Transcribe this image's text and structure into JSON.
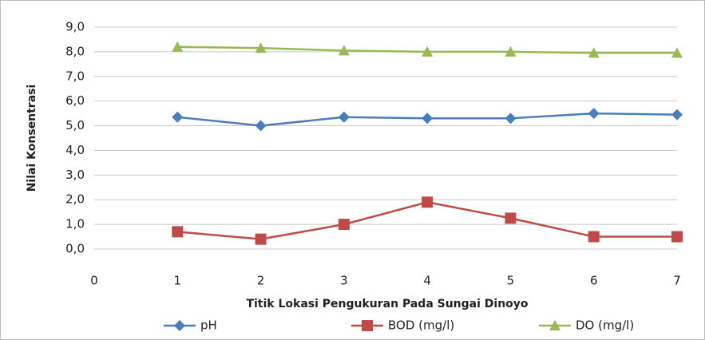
{
  "chart_data": {
    "type": "line",
    "x_label": "Titik Lokasi Pengukuran Pada Sungai Dinoyo",
    "y_label": "Nilai Konsentrasi",
    "x": [
      1,
      2,
      3,
      4,
      5,
      6,
      7
    ],
    "xlim": [
      0,
      7
    ],
    "xticks": [
      0,
      1,
      2,
      3,
      4,
      5,
      6,
      7
    ],
    "ylim": [
      0,
      9
    ],
    "yticks": [
      {
        "value": 0,
        "label": "0,0"
      },
      {
        "value": 1,
        "label": "1,0"
      },
      {
        "value": 2,
        "label": "2,0"
      },
      {
        "value": 3,
        "label": "3,0"
      },
      {
        "value": 4,
        "label": "4,0"
      },
      {
        "value": 5,
        "label": "5,0"
      },
      {
        "value": 6,
        "label": "6,0"
      },
      {
        "value": 7,
        "label": "7,0"
      },
      {
        "value": 8,
        "label": "8,0"
      },
      {
        "value": 9,
        "label": "9,0"
      }
    ],
    "grid": true,
    "legend": "bottom",
    "series": [
      {
        "name": "pH",
        "color": "#4a7ebb",
        "marker": "diamond",
        "values": [
          5.35,
          5.0,
          5.35,
          5.3,
          5.3,
          5.5,
          5.45
        ]
      },
      {
        "name": "BOD (mg/l)",
        "color": "#be4b48",
        "marker": "square",
        "values": [
          0.7,
          0.4,
          1.0,
          1.9,
          1.25,
          0.5,
          0.5
        ]
      },
      {
        "name": "DO (mg/l)",
        "color": "#98b954",
        "marker": "triangle",
        "values": [
          8.2,
          8.15,
          8.05,
          8.0,
          8.0,
          7.95,
          7.95
        ]
      }
    ]
  }
}
